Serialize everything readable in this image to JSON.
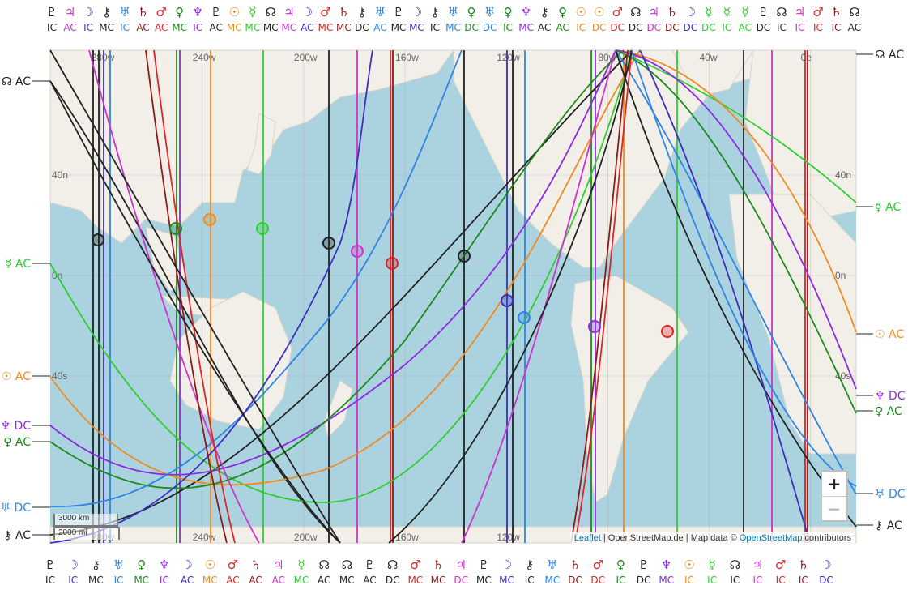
{
  "map": {
    "ocean_color": "#aad3df",
    "land_color": "#f2efe9",
    "grid_color": "#999999",
    "lon_labels": [
      "280w",
      "240w",
      "200w",
      "160w",
      "120w",
      "80w",
      "40w",
      "0e"
    ],
    "lon_values": [
      -280,
      -240,
      -200,
      -160,
      -120,
      -80,
      -40,
      0
    ],
    "lat_labels": [
      "40n",
      "0n",
      "40s"
    ],
    "lat_values": [
      40,
      0,
      -40
    ]
  },
  "colors": {
    "pluto": "#222222",
    "jupiter": "#cc33cc",
    "moon": "#3b2fc0",
    "chiron": "#222222",
    "uranus": "#2f84e6",
    "saturn": "#8b1a1a",
    "mars": "#d92626",
    "venus": "#1d8a1d",
    "neptune": "#8d2be2",
    "sun": "#f08a20",
    "mercury": "#2fce2f",
    "node": "#222222"
  },
  "glyphs": {
    "pluto": "♇",
    "jupiter": "♃",
    "moon": "☽",
    "chiron": "⚷",
    "uranus": "♅",
    "saturn": "♄",
    "mars": "♂",
    "venus": "♀",
    "neptune": "♆",
    "sun": "☉",
    "mercury": "☿",
    "node": "☊"
  },
  "top_labels": [
    {
      "body": "pluto",
      "angle": "IC"
    },
    {
      "body": "jupiter",
      "angle": "AC"
    },
    {
      "body": "moon",
      "angle": "IC"
    },
    {
      "body": "chiron",
      "angle": "MC"
    },
    {
      "body": "uranus",
      "angle": "IC"
    },
    {
      "body": "saturn",
      "angle": "AC"
    },
    {
      "body": "mars",
      "angle": "AC"
    },
    {
      "body": "venus",
      "angle": "MC"
    },
    {
      "body": "neptune",
      "angle": "IC"
    },
    {
      "body": "pluto",
      "angle": "AC"
    },
    {
      "body": "sun",
      "angle": "MC"
    },
    {
      "body": "mercury",
      "angle": "MC"
    },
    {
      "body": "node",
      "angle": "MC"
    },
    {
      "body": "jupiter",
      "angle": "MC"
    },
    {
      "body": "moon",
      "angle": "AC"
    },
    {
      "body": "mars",
      "angle": "MC"
    },
    {
      "body": "saturn",
      "angle": "MC"
    },
    {
      "body": "chiron",
      "angle": "DC"
    },
    {
      "body": "uranus",
      "angle": "AC"
    },
    {
      "body": "pluto",
      "angle": "MC"
    },
    {
      "body": "moon",
      "angle": "MC"
    },
    {
      "body": "chiron",
      "angle": "IC"
    },
    {
      "body": "uranus",
      "angle": "MC"
    },
    {
      "body": "venus",
      "angle": "DC"
    },
    {
      "body": "uranus",
      "angle": "DC"
    },
    {
      "body": "venus",
      "angle": "IC"
    },
    {
      "body": "neptune",
      "angle": "MC"
    },
    {
      "body": "chiron",
      "angle": "AC"
    },
    {
      "body": "venus",
      "angle": "AC"
    },
    {
      "body": "sun",
      "angle": "IC"
    },
    {
      "body": "sun",
      "angle": "DC"
    },
    {
      "body": "mars",
      "angle": "DC"
    },
    {
      "body": "node",
      "angle": "DC"
    },
    {
      "body": "jupiter",
      "angle": "DC"
    },
    {
      "body": "saturn",
      "angle": "DC"
    },
    {
      "body": "moon",
      "angle": "DC"
    },
    {
      "body": "mercury",
      "angle": "DC"
    },
    {
      "body": "mercury",
      "angle": "IC"
    },
    {
      "body": "mercury",
      "angle": "AC"
    },
    {
      "body": "pluto",
      "angle": "DC"
    },
    {
      "body": "node",
      "angle": "IC"
    },
    {
      "body": "jupiter",
      "angle": "IC"
    },
    {
      "body": "mars",
      "angle": "IC"
    },
    {
      "body": "saturn",
      "angle": "IC"
    },
    {
      "body": "node",
      "angle": "AC"
    }
  ],
  "bottom_labels": [
    {
      "body": "pluto",
      "angle": "IC"
    },
    {
      "body": "moon",
      "angle": "IC"
    },
    {
      "body": "chiron",
      "angle": "MC"
    },
    {
      "body": "uranus",
      "angle": "IC"
    },
    {
      "body": "venus",
      "angle": "MC"
    },
    {
      "body": "neptune",
      "angle": "IC"
    },
    {
      "body": "moon",
      "angle": "AC"
    },
    {
      "body": "sun",
      "angle": "MC"
    },
    {
      "body": "mars",
      "angle": "AC"
    },
    {
      "body": "saturn",
      "angle": "AC"
    },
    {
      "body": "jupiter",
      "angle": "AC"
    },
    {
      "body": "mercury",
      "angle": "MC"
    },
    {
      "body": "node",
      "angle": "AC"
    },
    {
      "body": "node",
      "angle": "MC"
    },
    {
      "body": "pluto",
      "angle": "AC"
    },
    {
      "body": "node",
      "angle": "DC"
    },
    {
      "body": "mars",
      "angle": "MC"
    },
    {
      "body": "saturn",
      "angle": "MC"
    },
    {
      "body": "jupiter",
      "angle": "DC"
    },
    {
      "body": "pluto",
      "angle": "MC"
    },
    {
      "body": "moon",
      "angle": "MC"
    },
    {
      "body": "chiron",
      "angle": "IC"
    },
    {
      "body": "uranus",
      "angle": "MC"
    },
    {
      "body": "saturn",
      "angle": "DC"
    },
    {
      "body": "mars",
      "angle": "DC"
    },
    {
      "body": "venus",
      "angle": "IC"
    },
    {
      "body": "pluto",
      "angle": "DC"
    },
    {
      "body": "neptune",
      "angle": "MC"
    },
    {
      "body": "sun",
      "angle": "IC"
    },
    {
      "body": "mercury",
      "angle": "IC"
    },
    {
      "body": "node",
      "angle": "IC"
    },
    {
      "body": "jupiter",
      "angle": "IC"
    },
    {
      "body": "mars",
      "angle": "IC"
    },
    {
      "body": "saturn",
      "angle": "IC"
    },
    {
      "body": "moon",
      "angle": "DC"
    }
  ],
  "left_labels": [
    {
      "body": "node",
      "angle": "AC"
    },
    {
      "body": "mercury",
      "angle": "AC"
    },
    {
      "body": "sun",
      "angle": "AC"
    },
    {
      "body": "neptune",
      "angle": "DC"
    },
    {
      "body": "venus",
      "angle": "AC"
    },
    {
      "body": "uranus",
      "angle": "DC"
    },
    {
      "body": "chiron",
      "angle": "AC"
    }
  ],
  "right_labels": [
    {
      "body": "node",
      "angle": "AC"
    },
    {
      "body": "mercury",
      "angle": "AC"
    },
    {
      "body": "sun",
      "angle": "AC"
    },
    {
      "body": "neptune",
      "angle": "DC"
    },
    {
      "body": "venus",
      "angle": "AC"
    },
    {
      "body": "uranus",
      "angle": "DC"
    },
    {
      "body": "chiron",
      "angle": "AC"
    }
  ],
  "zoom": {
    "in_label": "+",
    "out_label": "−"
  },
  "scale": {
    "km_label": "3000 km",
    "mi_label": "2000 mi"
  },
  "attribution": {
    "leaflet": "Leaflet",
    "sep": " | ",
    "osm_de": "OpenStreetMap.de",
    "mid": " | Map data © ",
    "osm": "OpenStreetMap",
    "tail": " contributors"
  }
}
